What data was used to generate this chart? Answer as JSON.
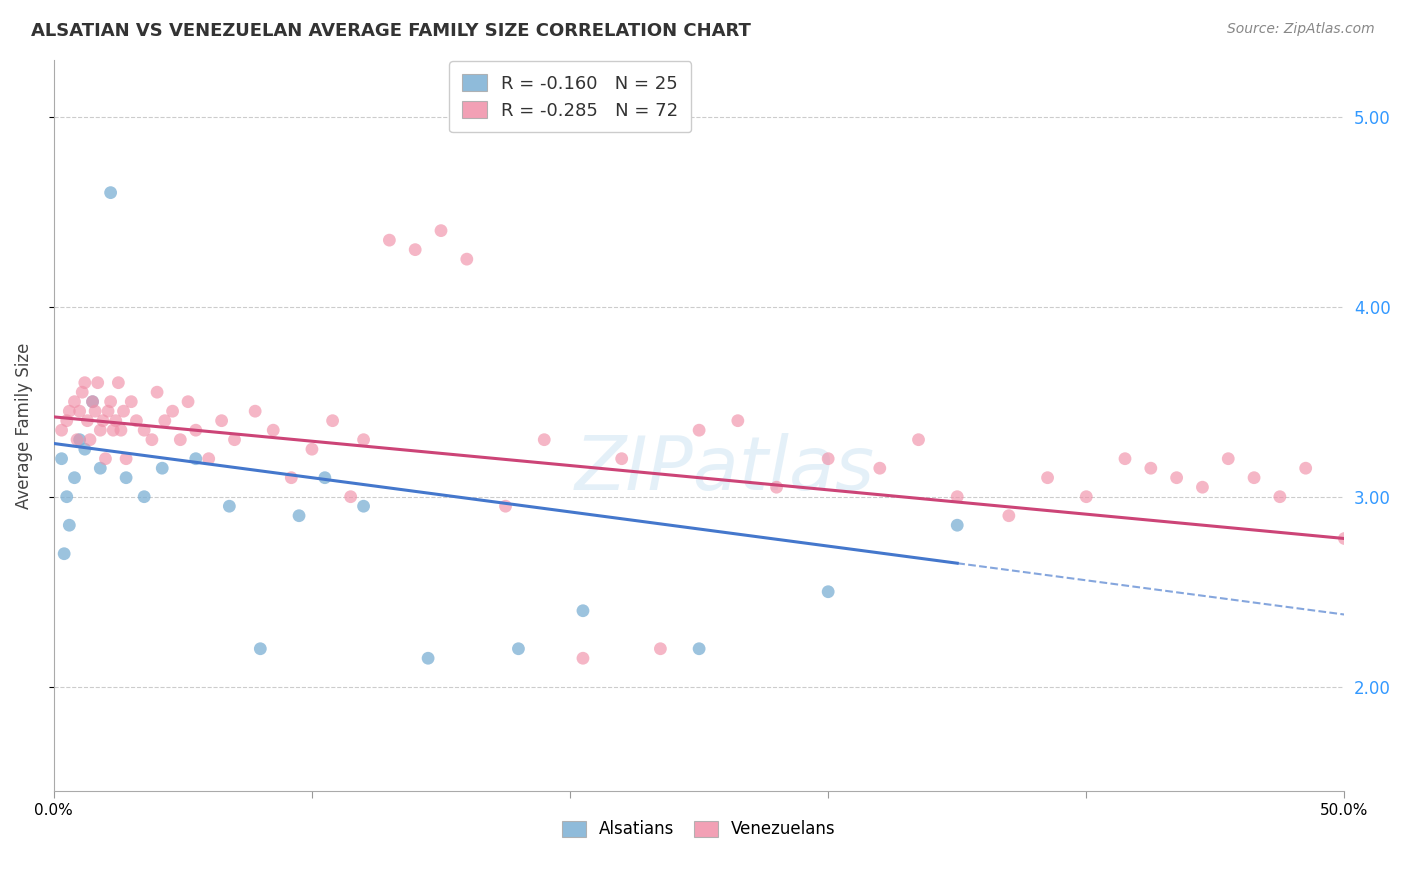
{
  "title": "ALSATIAN VS VENEZUELAN AVERAGE FAMILY SIZE CORRELATION CHART",
  "source": "Source: ZipAtlas.com",
  "ylabel": "Average Family Size",
  "watermark": "ZIPatlas",
  "alsatian_color": "#7bafd4",
  "venezuelan_color": "#f090a8",
  "alsatian_alpha": 0.75,
  "venezuelan_alpha": 0.65,
  "marker_size": 85,
  "right_axis_color": "#3399ff",
  "grid_color": "#cccccc",
  "background_color": "#ffffff",
  "als_line_color": "#4477cc",
  "ven_line_color": "#cc4477",
  "als_line_start_y": 3.28,
  "als_line_end_y": 2.65,
  "als_solid_end_x": 35.0,
  "ven_line_start_y": 3.42,
  "ven_line_end_y": 2.78,
  "ven_solid_end_x": 50.0,
  "xmin": 0.0,
  "xmax": 50.0,
  "ymin": 1.45,
  "ymax": 5.3,
  "als_x": [
    1.0,
    1.5,
    2.2,
    0.3,
    0.5,
    0.8,
    1.2,
    0.6,
    1.8,
    0.4,
    2.8,
    3.5,
    5.5,
    4.2,
    6.8,
    9.5,
    12.0,
    14.5,
    18.0,
    20.5,
    25.0,
    10.5,
    30.0,
    8.0,
    35.0
  ],
  "als_y": [
    3.3,
    3.5,
    4.6,
    3.2,
    3.0,
    3.1,
    3.25,
    2.85,
    3.15,
    2.7,
    3.1,
    3.0,
    3.2,
    3.15,
    2.95,
    2.9,
    2.95,
    2.15,
    2.2,
    2.4,
    2.2,
    3.1,
    2.5,
    2.2,
    2.85
  ],
  "ven_x": [
    0.3,
    0.5,
    0.6,
    0.8,
    0.9,
    1.0,
    1.1,
    1.2,
    1.3,
    1.4,
    1.5,
    1.6,
    1.7,
    1.8,
    1.9,
    2.0,
    2.1,
    2.2,
    2.3,
    2.4,
    2.5,
    2.6,
    2.7,
    2.8,
    3.0,
    3.2,
    3.5,
    3.8,
    4.0,
    4.3,
    4.6,
    4.9,
    5.2,
    5.5,
    6.0,
    6.5,
    7.0,
    7.8,
    8.5,
    9.2,
    10.0,
    10.8,
    11.5,
    12.0,
    13.0,
    14.0,
    15.0,
    16.0,
    17.5,
    19.0,
    20.5,
    22.0,
    23.5,
    25.0,
    26.5,
    28.0,
    30.0,
    32.0,
    33.5,
    35.0,
    37.0,
    38.5,
    40.0,
    41.5,
    42.5,
    43.5,
    44.5,
    45.5,
    46.5,
    47.5,
    48.5,
    50.0
  ],
  "ven_y": [
    3.35,
    3.4,
    3.45,
    3.5,
    3.3,
    3.45,
    3.55,
    3.6,
    3.4,
    3.3,
    3.5,
    3.45,
    3.6,
    3.35,
    3.4,
    3.2,
    3.45,
    3.5,
    3.35,
    3.4,
    3.6,
    3.35,
    3.45,
    3.2,
    3.5,
    3.4,
    3.35,
    3.3,
    3.55,
    3.4,
    3.45,
    3.3,
    3.5,
    3.35,
    3.2,
    3.4,
    3.3,
    3.45,
    3.35,
    3.1,
    3.25,
    3.4,
    3.0,
    3.3,
    4.35,
    4.3,
    4.4,
    4.25,
    2.95,
    3.3,
    2.15,
    3.2,
    2.2,
    3.35,
    3.4,
    3.05,
    3.2,
    3.15,
    3.3,
    3.0,
    2.9,
    3.1,
    3.0,
    3.2,
    3.15,
    3.1,
    3.05,
    3.2,
    3.1,
    3.0,
    3.15,
    2.78
  ]
}
